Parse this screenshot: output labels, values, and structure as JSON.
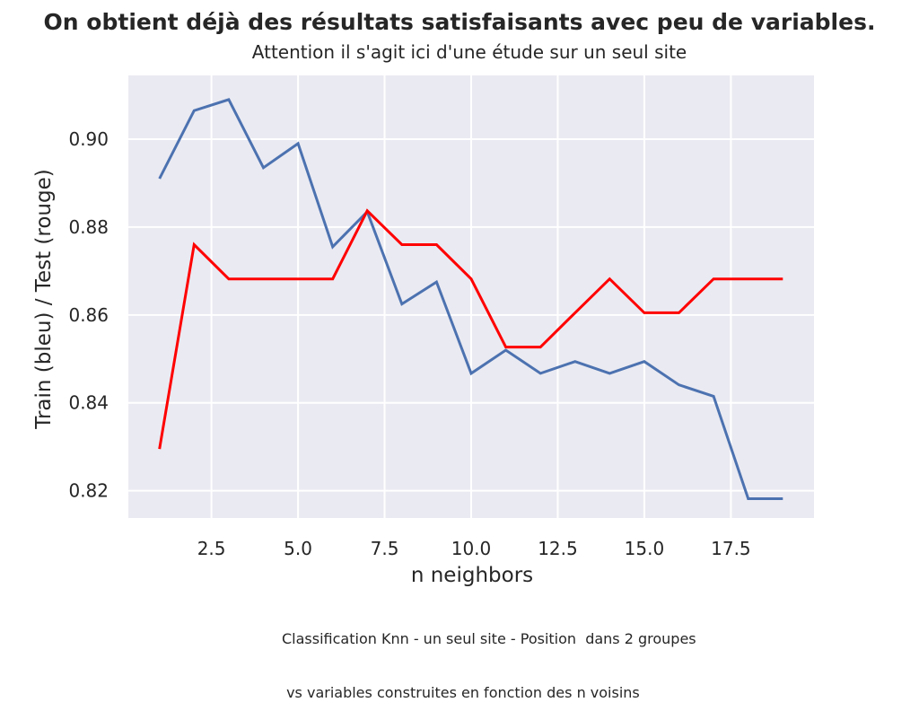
{
  "chart_data": {
    "type": "line",
    "title": "On obtient déjà des résultats satisfaisants avec peu de variables.",
    "subtitle": "Attention il s'agit ici d'une étude sur un seul site",
    "xlabel": "n neighbors",
    "ylabel": "Train (bleu) / Test (rouge)",
    "caption_lines": [
      "Classification Knn - un seul site - Position  dans 2 groupes",
      " vs variables construites en fonction des n voisins"
    ],
    "xlim": [
      0.1,
      19.9
    ],
    "ylim": [
      0.8138,
      0.9145
    ],
    "xticks": [
      2.5,
      5.0,
      7.5,
      10.0,
      12.5,
      15.0,
      17.5
    ],
    "xtick_labels": [
      "2.5",
      "5.0",
      "7.5",
      "10.0",
      "12.5",
      "15.0",
      "17.5"
    ],
    "yticks": [
      0.82,
      0.84,
      0.86,
      0.88,
      0.9
    ],
    "ytick_labels": [
      "0.82",
      "0.84",
      "0.86",
      "0.88",
      "0.90"
    ],
    "grid": true,
    "background": "#eaeaf2",
    "x": [
      1,
      2,
      3,
      4,
      5,
      6,
      7,
      8,
      9,
      10,
      11,
      12,
      13,
      14,
      15,
      16,
      17,
      18,
      19
    ],
    "series": [
      {
        "color": "#4c72b0",
        "values": [
          0.891,
          0.9065,
          0.909,
          0.8935,
          0.899,
          0.8755,
          0.8835,
          0.8625,
          0.8675,
          0.8467,
          0.852,
          0.8467,
          0.8494,
          0.8467,
          0.8494,
          0.8441,
          0.8415,
          0.8182,
          0.8182
        ]
      },
      {
        "color": "#ff0000",
        "values": [
          0.8295,
          0.876,
          0.8682,
          0.8682,
          0.8682,
          0.8682,
          0.8837,
          0.876,
          0.876,
          0.8682,
          0.8527,
          0.8527,
          0.8605,
          0.8682,
          0.8605,
          0.8605,
          0.8682,
          0.8682,
          0.8682
        ]
      }
    ]
  }
}
